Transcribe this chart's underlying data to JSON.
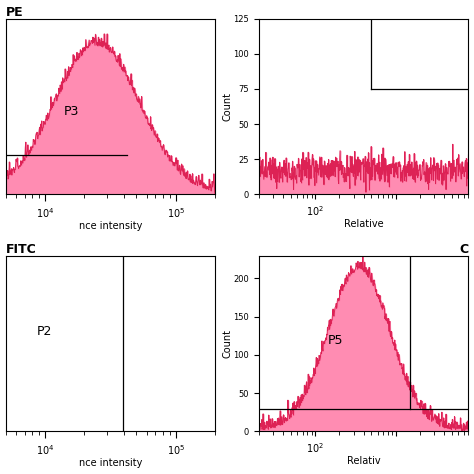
{
  "fig_width": 4.74,
  "fig_height": 4.74,
  "bg_color": "#ffffff",
  "pink_fill": "#FF80AA",
  "pink_edge": "#DD2255",
  "yticks_tr": [
    0,
    25,
    50,
    75,
    100,
    125
  ],
  "yticks_br": [
    0,
    50,
    100,
    150,
    200
  ],
  "seed": 12
}
